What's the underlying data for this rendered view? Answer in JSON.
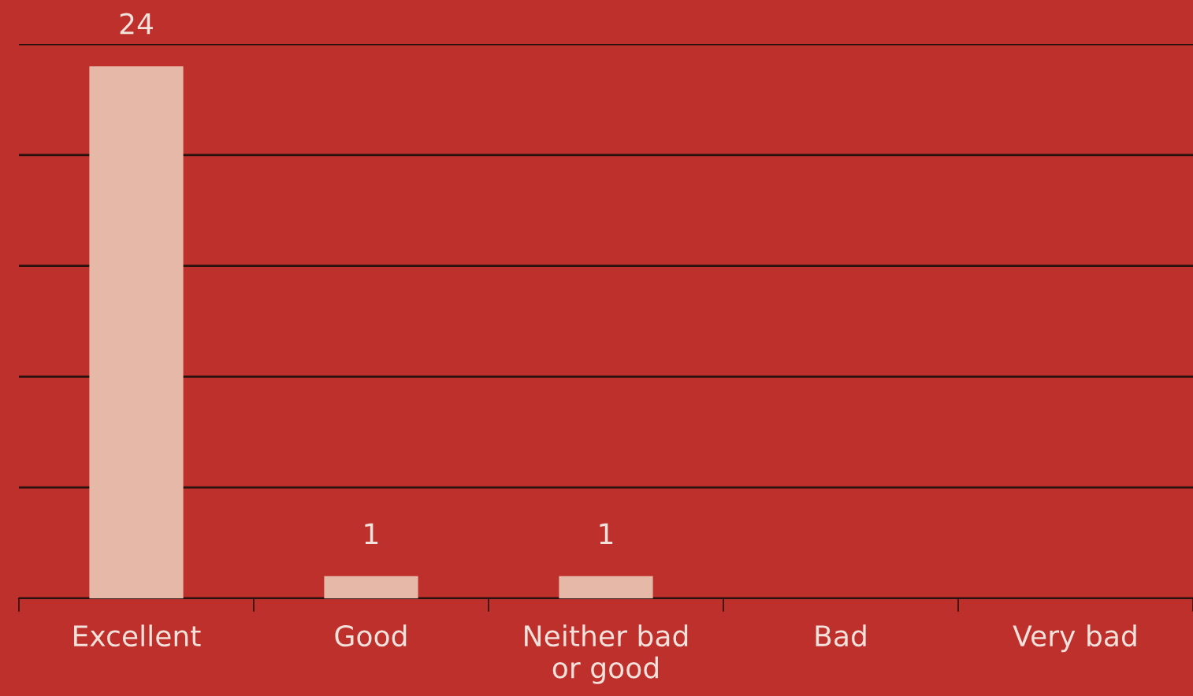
{
  "chart_data": {
    "type": "bar",
    "categories": [
      "Excellent",
      "Good",
      "Neither bad\nor good",
      "Bad",
      "Very bad"
    ],
    "values": [
      24,
      1,
      1,
      0,
      0
    ],
    "value_labels": [
      "24",
      "1",
      "1",
      null,
      null
    ],
    "color": "#e5b8a8",
    "ylim": [
      0,
      25
    ],
    "yticks": [
      {
        "value": 0,
        "label": null
      },
      {
        "value": 5,
        "label": null
      },
      {
        "value": 10,
        "label": null
      },
      {
        "value": 15,
        "label": null
      },
      {
        "value": 20,
        "label": null
      },
      {
        "value": 25,
        "label": null
      }
    ],
    "grid": "y",
    "tick_labels": "x"
  }
}
